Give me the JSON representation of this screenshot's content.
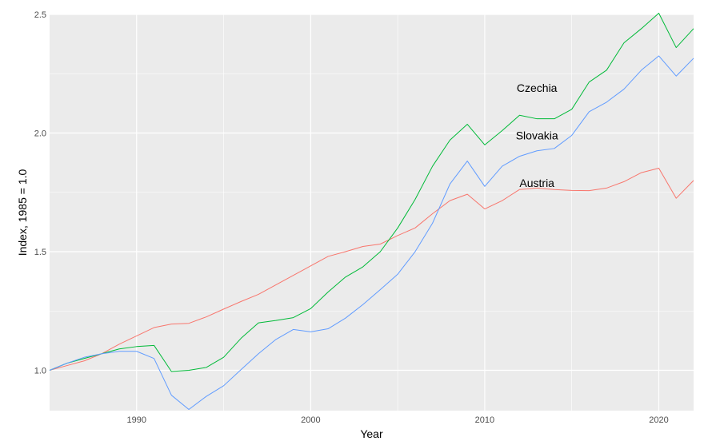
{
  "chart_data": {
    "type": "line",
    "xlabel": "Year",
    "ylabel": "Index, 1985 = 1.0",
    "xlim": [
      1985,
      2022
    ],
    "ylim": [
      0.83,
      2.5
    ],
    "x_ticks": [
      1990,
      2000,
      2010,
      2020
    ],
    "x_tick_labels": [
      "1990",
      "2000",
      "2010",
      "2020"
    ],
    "y_ticks": [
      1.0,
      1.5,
      2.0,
      2.5
    ],
    "y_tick_labels": [
      "1.0",
      "1.5",
      "2.0",
      "2.5"
    ],
    "grid": true,
    "legend": "none",
    "x": [
      1985,
      1986,
      1987,
      1988,
      1989,
      1990,
      1991,
      1992,
      1993,
      1994,
      1995,
      1996,
      1997,
      1998,
      1999,
      2000,
      2001,
      2002,
      2003,
      2004,
      2005,
      2006,
      2007,
      2008,
      2009,
      2010,
      2011,
      2012,
      2013,
      2014,
      2015,
      2016,
      2017,
      2018,
      2019,
      2020,
      2021,
      2022
    ],
    "series": [
      {
        "name": "Austria",
        "color": "#F8766D",
        "values": [
          1.0,
          1.02,
          1.04,
          1.07,
          1.11,
          1.145,
          1.18,
          1.195,
          1.198,
          1.225,
          1.258,
          1.29,
          1.32,
          1.36,
          1.4,
          1.44,
          1.48,
          1.5,
          1.522,
          1.532,
          1.568,
          1.6,
          1.66,
          1.715,
          1.742,
          1.68,
          1.715,
          1.762,
          1.768,
          1.762,
          1.758,
          1.757,
          1.768,
          1.795,
          1.833,
          1.852,
          1.725,
          1.8
        ]
      },
      {
        "name": "Czechia",
        "color": "#00BA38",
        "values": [
          1.0,
          1.03,
          1.05,
          1.07,
          1.09,
          1.1,
          1.105,
          0.995,
          1.0,
          1.012,
          1.055,
          1.135,
          1.2,
          1.21,
          1.222,
          1.26,
          1.33,
          1.393,
          1.436,
          1.5,
          1.6,
          1.72,
          1.86,
          1.97,
          2.037,
          1.95,
          2.01,
          2.075,
          2.06,
          2.06,
          2.1,
          2.215,
          2.265,
          2.38,
          2.44,
          2.505,
          2.36,
          2.44
        ]
      },
      {
        "name": "Slovakia",
        "color": "#619CFF",
        "values": [
          1.0,
          1.03,
          1.055,
          1.07,
          1.08,
          1.08,
          1.05,
          0.895,
          0.835,
          0.89,
          0.935,
          1.003,
          1.07,
          1.13,
          1.172,
          1.162,
          1.175,
          1.22,
          1.277,
          1.34,
          1.405,
          1.5,
          1.62,
          1.785,
          1.882,
          1.775,
          1.86,
          1.902,
          1.925,
          1.935,
          1.99,
          2.09,
          2.13,
          2.185,
          2.265,
          2.325,
          2.24,
          2.315
        ]
      }
    ],
    "annotations": [
      {
        "text": "Czechia",
        "series": "Czechia",
        "x": 2013,
        "y": 2.19
      },
      {
        "text": "Slovakia",
        "series": "Slovakia",
        "x": 2013,
        "y": 1.99
      },
      {
        "text": "Austria",
        "series": "Austria",
        "x": 2013,
        "y": 1.79
      }
    ],
    "colors": {
      "panel_background": "#EBEBEB",
      "grid_line": "#FFFFFF",
      "tick_label": "#4D4D4D",
      "axis_title": "#000000"
    }
  }
}
